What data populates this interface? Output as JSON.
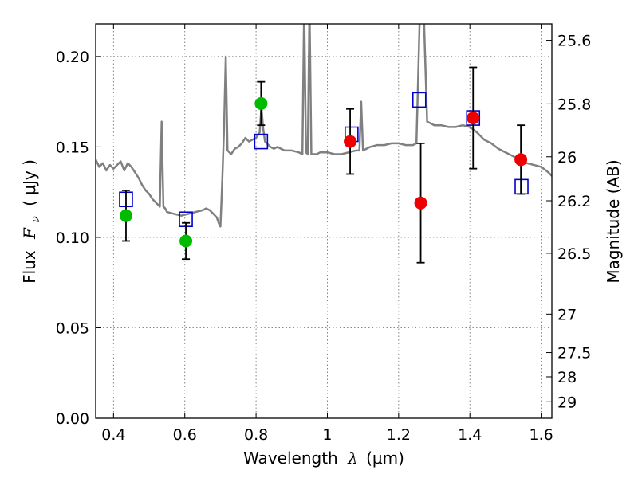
{
  "chart_data": {
    "type": "scatter",
    "xlabel": {
      "prefix": "Wavelength",
      "symbol": "λ",
      "unit": "(μm)"
    },
    "ylabel": {
      "prefix": "Flux",
      "symbol": "F",
      "subscript": "ν",
      "unit": "( μJy )"
    },
    "y2label": "Magnitude (AB)",
    "xlim": [
      0.35,
      1.63
    ],
    "ylim": [
      0.0,
      0.218
    ],
    "grid": true,
    "x_ticks": [
      {
        "value": 0.4,
        "label": "0.4"
      },
      {
        "value": 0.6,
        "label": "0.6"
      },
      {
        "value": 0.8,
        "label": "0.8"
      },
      {
        "value": 1.0,
        "label": "1"
      },
      {
        "value": 1.2,
        "label": "1.2"
      },
      {
        "value": 1.4,
        "label": "1.4"
      },
      {
        "value": 1.6,
        "label": "1.6"
      }
    ],
    "y_ticks": [
      {
        "value": 0.0,
        "label": "0.00"
      },
      {
        "value": 0.05,
        "label": "0.05"
      },
      {
        "value": 0.1,
        "label": "0.10"
      },
      {
        "value": 0.15,
        "label": "0.15"
      },
      {
        "value": 0.2,
        "label": "0.20"
      }
    ],
    "y2_ticks": [
      {
        "value": 25.6,
        "label": "25.6"
      },
      {
        "value": 25.8,
        "label": "25.8"
      },
      {
        "value": 26.0,
        "label": "26"
      },
      {
        "value": 26.2,
        "label": "26.2"
      },
      {
        "value": 26.5,
        "label": "26.5"
      },
      {
        "value": 27.0,
        "label": "27"
      },
      {
        "value": 27.5,
        "label": "27.5"
      },
      {
        "value": 28.0,
        "label": "28"
      },
      {
        "value": 29.0,
        "label": "29"
      }
    ],
    "colors": {
      "model": "#808080",
      "model_points": "#0000cc",
      "optical": "#00bb00",
      "nir": "#ee0000",
      "errorbar": "#000000",
      "grid": "#777777"
    },
    "model_spectrum": {
      "x": [
        0.35,
        0.36,
        0.37,
        0.38,
        0.39,
        0.4,
        0.41,
        0.42,
        0.43,
        0.44,
        0.45,
        0.46,
        0.47,
        0.48,
        0.49,
        0.5,
        0.51,
        0.52,
        0.53,
        0.535,
        0.54,
        0.545,
        0.55,
        0.57,
        0.59,
        0.61,
        0.63,
        0.65,
        0.66,
        0.67,
        0.68,
        0.69,
        0.695,
        0.7,
        0.705,
        0.71,
        0.715,
        0.72,
        0.73,
        0.74,
        0.75,
        0.76,
        0.77,
        0.78,
        0.79,
        0.8,
        0.81,
        0.815,
        0.82,
        0.825,
        0.83,
        0.84,
        0.85,
        0.86,
        0.87,
        0.88,
        0.9,
        0.92,
        0.93,
        0.935,
        0.94,
        0.945,
        0.95,
        0.955,
        0.96,
        0.97,
        0.98,
        1.0,
        1.02,
        1.04,
        1.06,
        1.08,
        1.09,
        1.095,
        1.1,
        1.12,
        1.14,
        1.16,
        1.18,
        1.2,
        1.22,
        1.24,
        1.25,
        1.26,
        1.27,
        1.28,
        1.29,
        1.3,
        1.32,
        1.34,
        1.36,
        1.38,
        1.4,
        1.42,
        1.44,
        1.46,
        1.48,
        1.5,
        1.52,
        1.54,
        1.56,
        1.58,
        1.6,
        1.62,
        1.63
      ],
      "y": [
        0.143,
        0.139,
        0.141,
        0.137,
        0.14,
        0.138,
        0.14,
        0.142,
        0.137,
        0.141,
        0.139,
        0.136,
        0.133,
        0.129,
        0.126,
        0.124,
        0.121,
        0.119,
        0.117,
        0.164,
        0.117,
        0.116,
        0.114,
        0.113,
        0.112,
        0.113,
        0.114,
        0.115,
        0.116,
        0.115,
        0.113,
        0.111,
        0.108,
        0.106,
        0.13,
        0.16,
        0.2,
        0.148,
        0.146,
        0.149,
        0.15,
        0.152,
        0.155,
        0.153,
        0.154,
        0.155,
        0.158,
        0.172,
        0.16,
        0.153,
        0.152,
        0.15,
        0.149,
        0.15,
        0.149,
        0.148,
        0.148,
        0.147,
        0.146,
        0.218,
        0.147,
        0.146,
        0.218,
        0.146,
        0.146,
        0.146,
        0.147,
        0.147,
        0.146,
        0.146,
        0.147,
        0.148,
        0.148,
        0.175,
        0.148,
        0.15,
        0.151,
        0.151,
        0.152,
        0.152,
        0.151,
        0.151,
        0.152,
        0.218,
        0.218,
        0.164,
        0.163,
        0.162,
        0.162,
        0.161,
        0.161,
        0.162,
        0.161,
        0.158,
        0.154,
        0.152,
        0.149,
        0.147,
        0.145,
        0.143,
        0.141,
        0.14,
        0.139,
        0.136,
        0.134
      ]
    },
    "series": [
      {
        "marker": "open-square",
        "x": [
          0.435,
          0.603,
          0.814,
          1.068,
          1.258,
          1.409,
          1.545
        ],
        "y": [
          0.121,
          0.11,
          0.153,
          0.157,
          0.176,
          0.166,
          0.128
        ]
      },
      {
        "marker": "filled-circle",
        "x": [
          0.435,
          0.603,
          0.814
        ],
        "y": [
          0.112,
          0.098,
          0.174
        ],
        "yerr": [
          0.014,
          0.01,
          0.012
        ]
      },
      {
        "marker": "filled-circle",
        "x": [
          1.064,
          1.262,
          1.409,
          1.543
        ],
        "y": [
          0.153,
          0.119,
          0.166,
          0.143
        ],
        "yerr": [
          0.018,
          0.033,
          0.028,
          0.019
        ]
      }
    ]
  }
}
